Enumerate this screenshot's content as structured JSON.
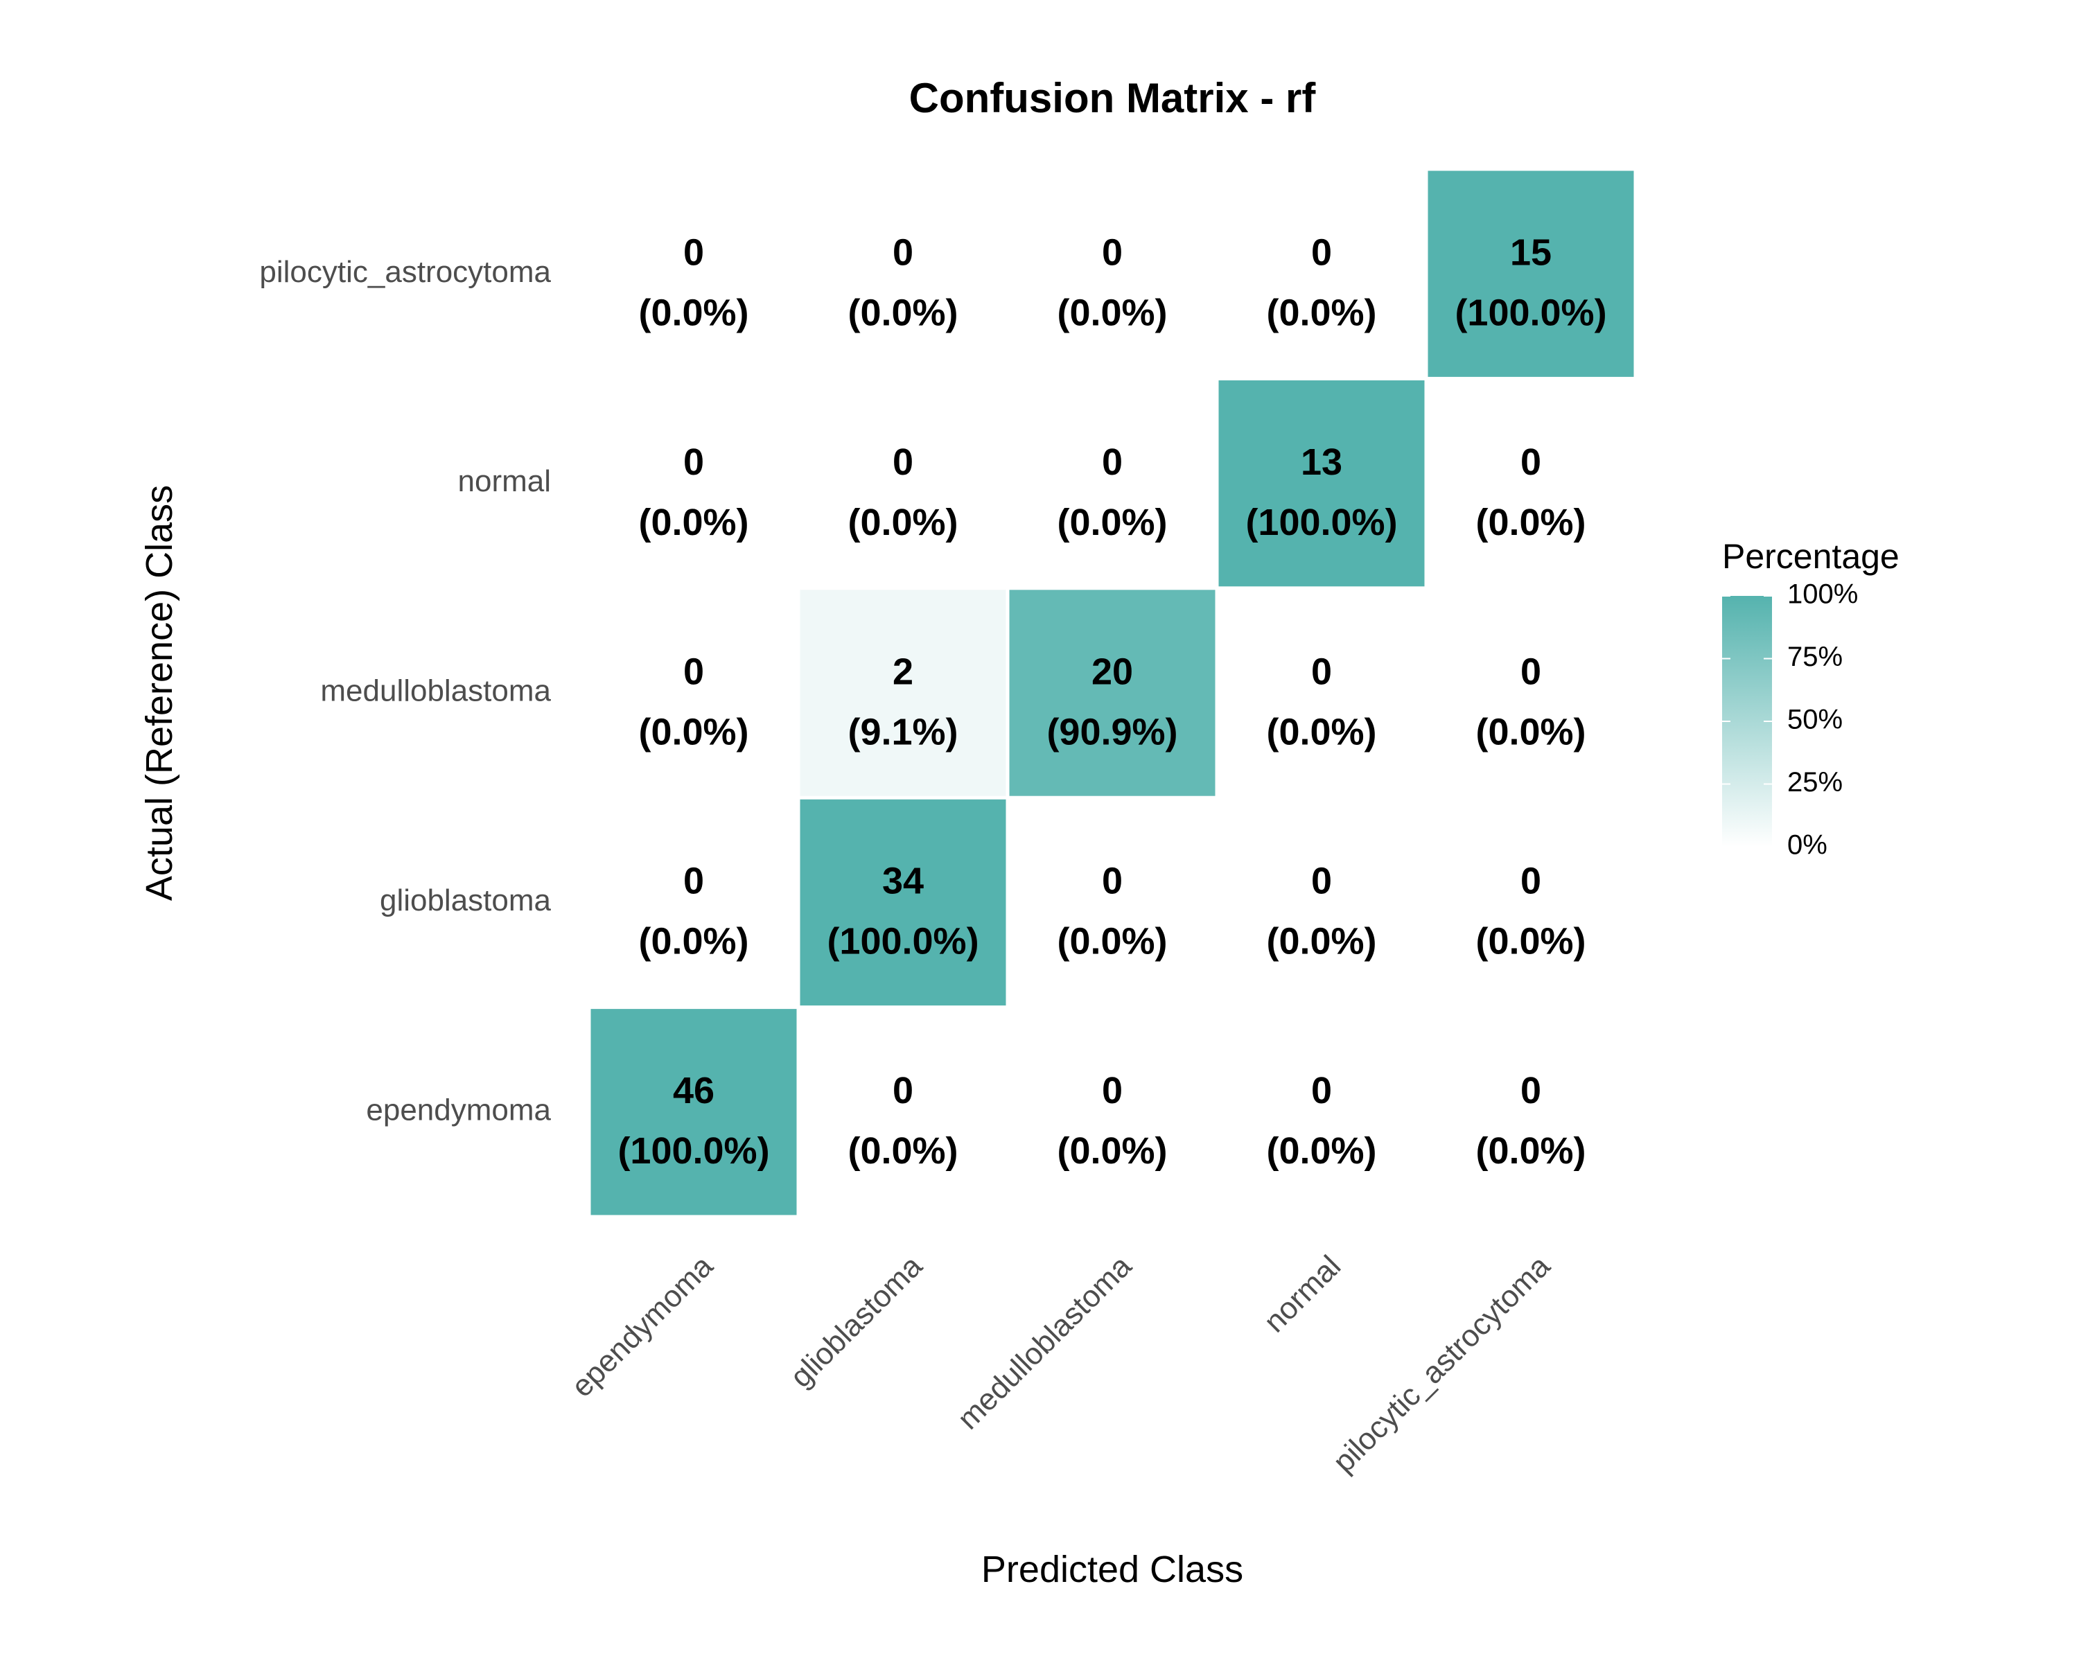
{
  "chart_data": {
    "type": "heatmap",
    "title": "Confusion Matrix - rf",
    "xlabel": "Predicted Class",
    "ylabel": "Actual (Reference) Class",
    "x_categories": [
      "ependymoma",
      "glioblastoma",
      "medulloblastoma",
      "normal",
      "pilocytic_astrocytoma"
    ],
    "y_categories": [
      "ependymoma",
      "glioblastoma",
      "medulloblastoma",
      "normal",
      "pilocytic_astrocytoma"
    ],
    "cells": [
      {
        "actual": "pilocytic_astrocytoma",
        "predicted": "ependymoma",
        "count": 0,
        "percent": 0,
        "label": "(0.0%)"
      },
      {
        "actual": "pilocytic_astrocytoma",
        "predicted": "glioblastoma",
        "count": 0,
        "percent": 0,
        "label": "(0.0%)"
      },
      {
        "actual": "pilocytic_astrocytoma",
        "predicted": "medulloblastoma",
        "count": 0,
        "percent": 0,
        "label": "(0.0%)"
      },
      {
        "actual": "pilocytic_astrocytoma",
        "predicted": "normal",
        "count": 0,
        "percent": 0,
        "label": "(0.0%)"
      },
      {
        "actual": "pilocytic_astrocytoma",
        "predicted": "pilocytic_astrocytoma",
        "count": 15,
        "percent": 100,
        "label": "(100.0%)"
      },
      {
        "actual": "normal",
        "predicted": "ependymoma",
        "count": 0,
        "percent": 0,
        "label": "(0.0%)"
      },
      {
        "actual": "normal",
        "predicted": "glioblastoma",
        "count": 0,
        "percent": 0,
        "label": "(0.0%)"
      },
      {
        "actual": "normal",
        "predicted": "medulloblastoma",
        "count": 0,
        "percent": 0,
        "label": "(0.0%)"
      },
      {
        "actual": "normal",
        "predicted": "normal",
        "count": 13,
        "percent": 100,
        "label": "(100.0%)"
      },
      {
        "actual": "normal",
        "predicted": "pilocytic_astrocytoma",
        "count": 0,
        "percent": 0,
        "label": "(0.0%)"
      },
      {
        "actual": "medulloblastoma",
        "predicted": "ependymoma",
        "count": 0,
        "percent": 0,
        "label": "(0.0%)"
      },
      {
        "actual": "medulloblastoma",
        "predicted": "glioblastoma",
        "count": 2,
        "percent": 9.1,
        "label": "(9.1%)"
      },
      {
        "actual": "medulloblastoma",
        "predicted": "medulloblastoma",
        "count": 20,
        "percent": 90.9,
        "label": "(90.9%)"
      },
      {
        "actual": "medulloblastoma",
        "predicted": "normal",
        "count": 0,
        "percent": 0,
        "label": "(0.0%)"
      },
      {
        "actual": "medulloblastoma",
        "predicted": "pilocytic_astrocytoma",
        "count": 0,
        "percent": 0,
        "label": "(0.0%)"
      },
      {
        "actual": "glioblastoma",
        "predicted": "ependymoma",
        "count": 0,
        "percent": 0,
        "label": "(0.0%)"
      },
      {
        "actual": "glioblastoma",
        "predicted": "glioblastoma",
        "count": 34,
        "percent": 100,
        "label": "(100.0%)"
      },
      {
        "actual": "glioblastoma",
        "predicted": "medulloblastoma",
        "count": 0,
        "percent": 0,
        "label": "(0.0%)"
      },
      {
        "actual": "glioblastoma",
        "predicted": "normal",
        "count": 0,
        "percent": 0,
        "label": "(0.0%)"
      },
      {
        "actual": "glioblastoma",
        "predicted": "pilocytic_astrocytoma",
        "count": 0,
        "percent": 0,
        "label": "(0.0%)"
      },
      {
        "actual": "ependymoma",
        "predicted": "ependymoma",
        "count": 46,
        "percent": 100,
        "label": "(100.0%)"
      },
      {
        "actual": "ependymoma",
        "predicted": "glioblastoma",
        "count": 0,
        "percent": 0,
        "label": "(0.0%)"
      },
      {
        "actual": "ependymoma",
        "predicted": "medulloblastoma",
        "count": 0,
        "percent": 0,
        "label": "(0.0%)"
      },
      {
        "actual": "ependymoma",
        "predicted": "normal",
        "count": 0,
        "percent": 0,
        "label": "(0.0%)"
      },
      {
        "actual": "ependymoma",
        "predicted": "pilocytic_astrocytoma",
        "count": 0,
        "percent": 0,
        "label": "(0.0%)"
      }
    ],
    "legend": {
      "title": "Percentage",
      "ticks": [
        {
          "value": 100,
          "label": "100%"
        },
        {
          "value": 75,
          "label": "75%"
        },
        {
          "value": 50,
          "label": "50%"
        },
        {
          "value": 25,
          "label": "25%"
        },
        {
          "value": 0,
          "label": "0%"
        }
      ],
      "range": [
        0,
        100
      ],
      "placement": "right"
    },
    "colors": {
      "low": "#ffffff",
      "high": "#55b3ae"
    },
    "grid": false
  }
}
